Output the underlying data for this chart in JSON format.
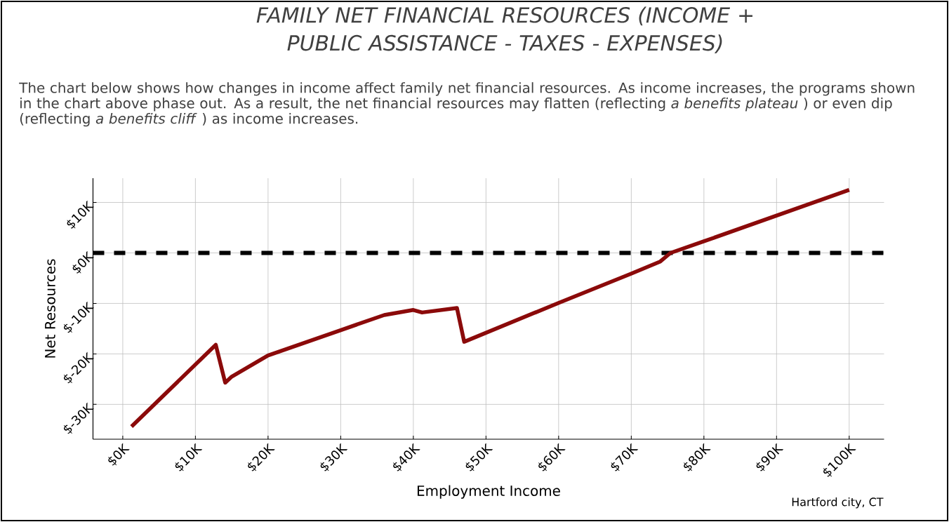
{
  "chart_data": {
    "type": "line",
    "title": "FAMILY NET FINANCIAL RESOURCES (INCOME + PUBLIC ASSISTANCE - TAXES - EXPENSES)",
    "subtitle": "The chart below shows how changes in income affect family net financial resources. As income increases, the programs shown in the chart above phase out. As a result, the net financial resources may flatten (reflecting *a benefits plateau* ) or even dip (reflecting *a benefits cliff* ) as income increases.",
    "xlabel": "Employment Income",
    "ylabel": "Net Resources",
    "annotations": [
      "Hartford city, CT"
    ],
    "series": [
      {
        "color": "#8b0a0a",
        "x": [
          1200,
          12800,
          14100,
          15000,
          20000,
          30000,
          36000,
          40000,
          41200,
          46000,
          47000,
          60000,
          70000,
          74000,
          75400,
          80000,
          90000,
          100000
        ],
        "values": [
          -34400,
          -18200,
          -25700,
          -24500,
          -20300,
          -15300,
          -12300,
          -11300,
          -11800,
          -10900,
          -17600,
          -9900,
          -4100,
          -1700,
          0,
          2300,
          7400,
          12500
        ]
      }
    ],
    "xlim": [
      -4100,
      104800
    ],
    "ylim": [
      -36900,
      14800
    ],
    "xticks": [
      {
        "value": 0,
        "label": "$0K"
      },
      {
        "value": 10000,
        "label": "$10K"
      },
      {
        "value": 20000,
        "label": "$20K"
      },
      {
        "value": 30000,
        "label": "$30K"
      },
      {
        "value": 40000,
        "label": "$40K"
      },
      {
        "value": 50000,
        "label": "$50K"
      },
      {
        "value": 60000,
        "label": "$60K"
      },
      {
        "value": 70000,
        "label": "$70K"
      },
      {
        "value": 80000,
        "label": "$80K"
      },
      {
        "value": 90000,
        "label": "$90K"
      },
      {
        "value": 100000,
        "label": "$100K"
      }
    ],
    "yticks": [
      {
        "value": -30000,
        "label": "$-30K"
      },
      {
        "value": -20000,
        "label": "$-20K"
      },
      {
        "value": -10000,
        "label": "$-10K"
      },
      {
        "value": 0,
        "label": "$0K"
      },
      {
        "value": 10000,
        "label": "$10K"
      }
    ],
    "ref_lines": [
      {
        "axis": "y",
        "value": 0,
        "color": "#000000",
        "line_style": "dashed"
      }
    ],
    "grid": true
  }
}
